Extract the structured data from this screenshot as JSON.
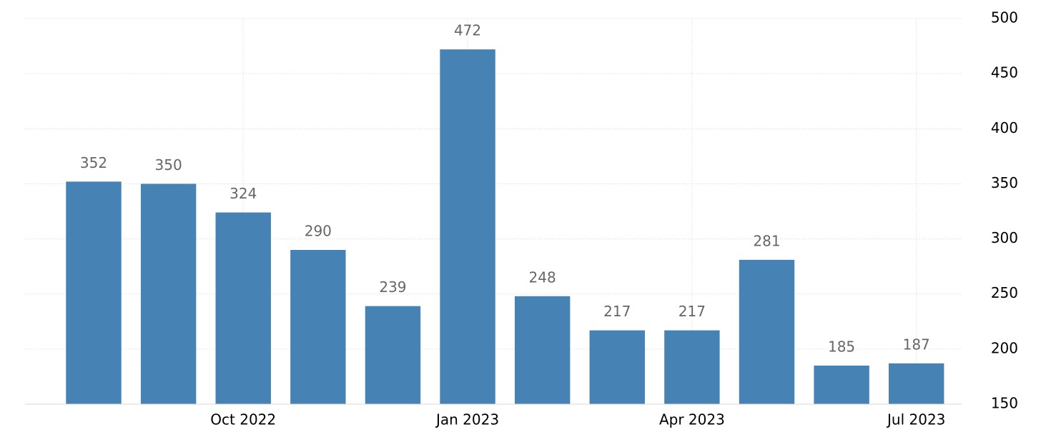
{
  "chart_data": {
    "type": "bar",
    "categories": [
      null,
      null,
      "Oct 2022",
      null,
      null,
      "Jan 2023",
      null,
      null,
      "Apr 2023",
      null,
      null,
      "Jul 2023"
    ],
    "values": [
      352,
      350,
      324,
      290,
      239,
      472,
      248,
      217,
      217,
      281,
      185,
      187
    ],
    "color": "#4682b4",
    "ylim": [
      150,
      500
    ],
    "yticks": [
      150,
      200,
      250,
      300,
      350,
      400,
      450,
      500
    ],
    "grid": true
  }
}
